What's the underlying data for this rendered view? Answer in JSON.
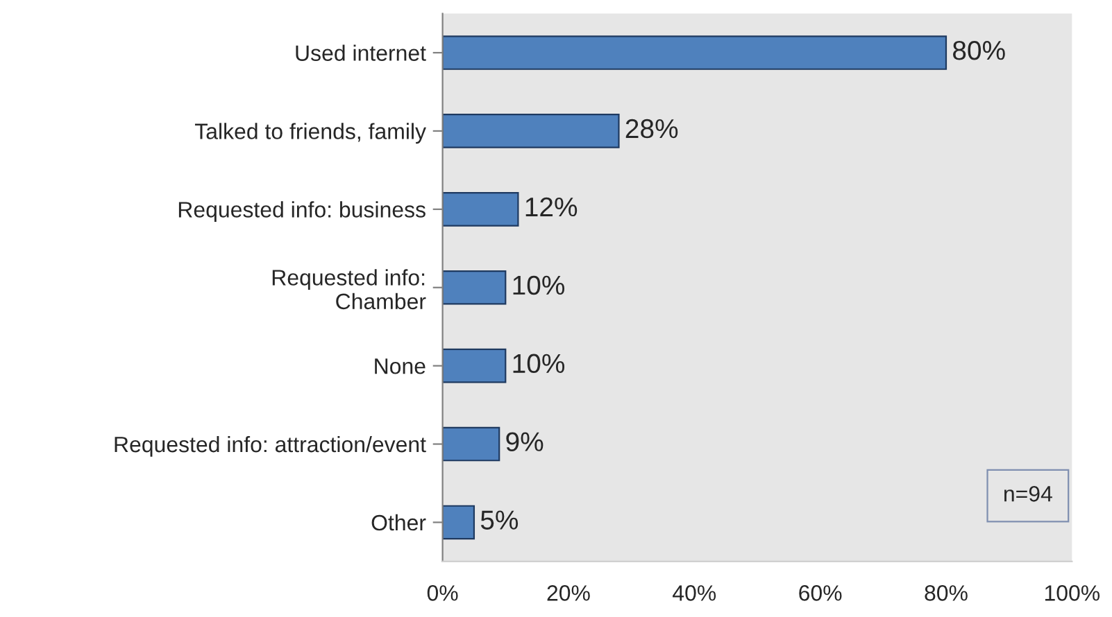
{
  "chart_data": {
    "type": "bar",
    "orientation": "horizontal",
    "categories": [
      "Used internet",
      "Talked to friends, family",
      "Requested info: business",
      "Requested info:\nChamber",
      "None",
      "Requested info: attraction/event",
      "Other"
    ],
    "values": [
      80,
      28,
      12,
      10,
      10,
      9,
      5
    ],
    "value_labels": [
      "80%",
      "28%",
      "12%",
      "10%",
      "10%",
      "9%",
      "5%"
    ],
    "color": "#4f81bd",
    "xlim": [
      0,
      100
    ],
    "xticks": [
      {
        "value": 0,
        "label": "0%"
      },
      {
        "value": 20,
        "label": "20%"
      },
      {
        "value": 40,
        "label": "40%"
      },
      {
        "value": 60,
        "label": "60%"
      },
      {
        "value": 80,
        "label": "80%"
      },
      {
        "value": 100,
        "label": "100%"
      }
    ],
    "grid": false,
    "legend": false,
    "annotations": [
      "n=94"
    ]
  }
}
